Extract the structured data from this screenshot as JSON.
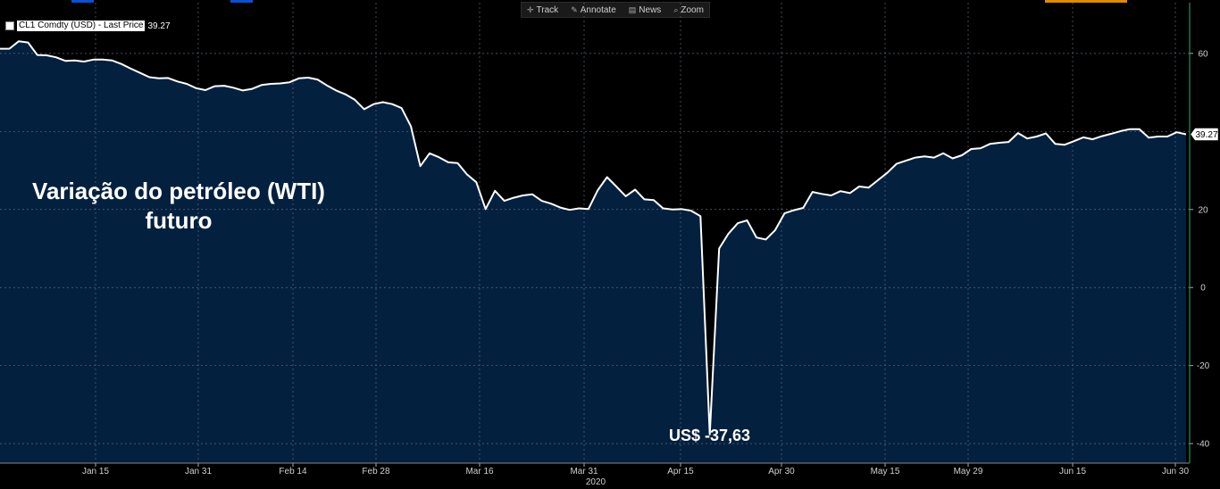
{
  "toolbar": {
    "items": [
      {
        "label": "Track",
        "icon": "crosshair-icon"
      },
      {
        "label": "Annotate",
        "icon": "pencil-icon"
      },
      {
        "label": "News",
        "icon": "news-icon"
      },
      {
        "label": "Zoom",
        "icon": "magnifier-icon"
      }
    ]
  },
  "legend": {
    "series": "CL1 Comdty (USD) - Last Price",
    "value": "39.27"
  },
  "overlay": {
    "line1": "Variação do petróleo (WTI)",
    "line2": "futuro"
  },
  "annotation": {
    "text": "US$ -37,63"
  },
  "colors": {
    "fill": "#04203f",
    "line": "#ffffff",
    "background": "#000000",
    "accent": "#ff8c00"
  },
  "chart_data": {
    "type": "area",
    "title": "",
    "xlabel": "2020",
    "ylabel": "",
    "ylim": [
      -45,
      73
    ],
    "grid": true,
    "yticks": [
      -40,
      -20,
      0,
      20,
      60
    ],
    "xticks": [
      "Jan 15",
      "Jan 31",
      "Feb 14",
      "Feb 28",
      "Mar 16",
      "Mar 31",
      "Apr 15",
      "Apr 30",
      "May 15",
      "May 29",
      "Jun 15",
      "Jun 30"
    ],
    "last_value_label": "39.27",
    "series": [
      {
        "name": "CL1 Comdty (USD) - Last Price",
        "values": [
          61.2,
          61.2,
          63.1,
          62.8,
          59.6,
          59.5,
          59.0,
          58.1,
          58.2,
          57.9,
          58.4,
          58.4,
          58.2,
          57.3,
          56.1,
          55.0,
          53.9,
          53.6,
          53.7,
          52.8,
          52.2,
          51.1,
          50.6,
          51.6,
          51.7,
          51.2,
          50.5,
          50.9,
          51.9,
          52.2,
          52.3,
          52.6,
          53.6,
          53.8,
          53.3,
          51.8,
          50.5,
          49.5,
          48.1,
          45.7,
          47.0,
          47.5,
          47.0,
          46.0,
          41.3,
          31.1,
          34.4,
          33.4,
          32.1,
          31.9,
          29.0,
          27.0,
          20.1,
          24.8,
          22.2,
          23.0,
          23.6,
          23.9,
          22.2,
          21.5,
          20.5,
          19.9,
          20.3,
          20.1,
          24.9,
          28.3,
          25.9,
          23.4,
          25.1,
          22.6,
          22.4,
          20.3,
          20.0,
          20.1,
          19.7,
          18.3,
          -37.63,
          10.0,
          13.8,
          16.5,
          17.2,
          12.8,
          12.3,
          14.7,
          19.0,
          19.8,
          20.4,
          24.5,
          24.0,
          23.6,
          24.7,
          24.2,
          25.9,
          25.6,
          27.5,
          29.4,
          31.7,
          32.5,
          33.3,
          33.6,
          33.3,
          34.4,
          33.1,
          33.9,
          35.5,
          35.7,
          36.8,
          37.1,
          37.3,
          39.6,
          38.2,
          38.7,
          39.5,
          36.8,
          36.6,
          37.5,
          38.5,
          38.0,
          38.8,
          39.4,
          40.1,
          40.6,
          40.6,
          38.4,
          38.7,
          38.7,
          39.8,
          39.27
        ]
      }
    ]
  }
}
